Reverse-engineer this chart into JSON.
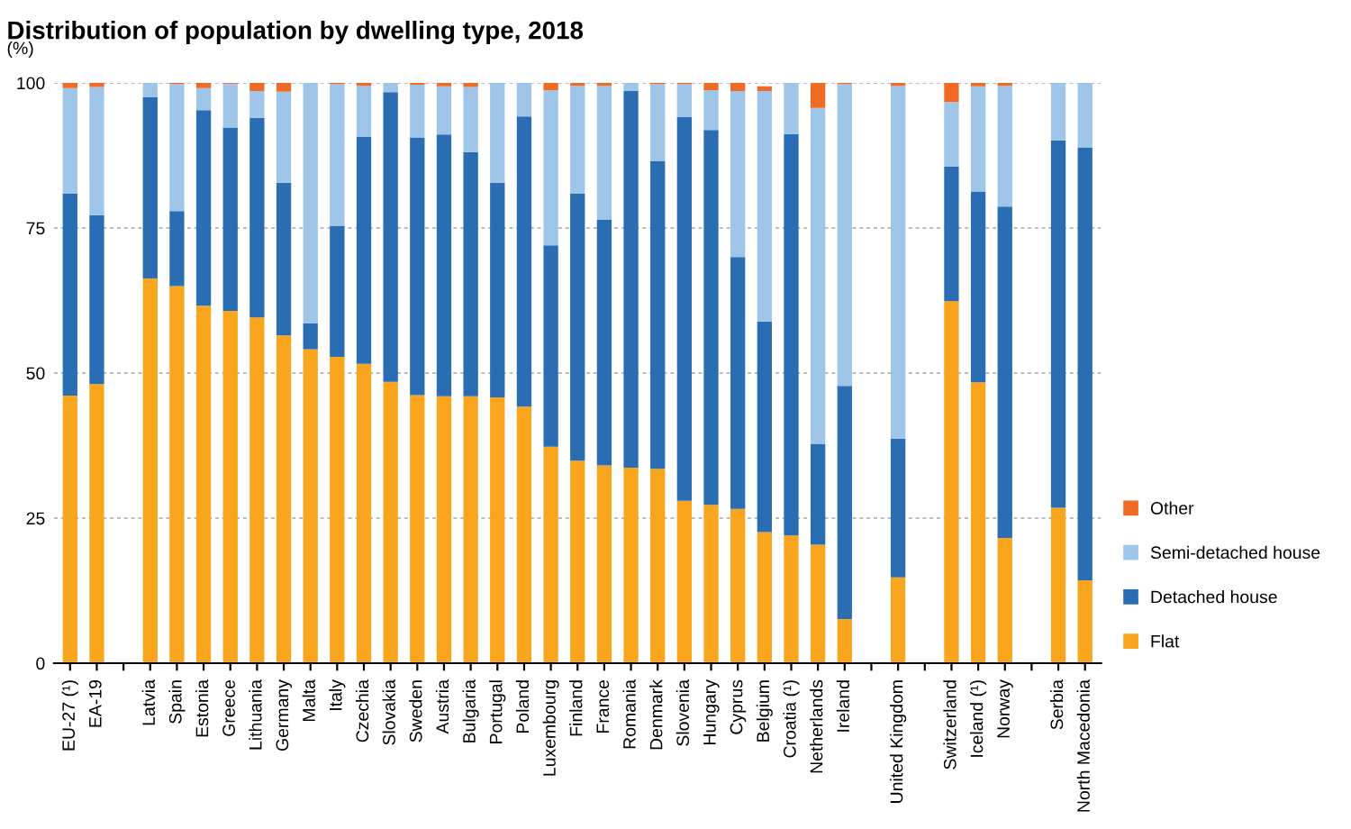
{
  "chart_data": {
    "type": "bar",
    "stacked": true,
    "title": "Distribution of population by dwelling type, 2018",
    "ylabel": "(%)",
    "categories": [
      "EU-27 (¹)",
      "EA-19",
      null,
      "Latvia",
      "Spain",
      "Estonia",
      "Greece",
      "Lithuania",
      "Germany",
      "Malta",
      "Italy",
      "Czechia",
      "Slovakia",
      "Sweden",
      "Austria",
      "Bulgaria",
      "Portugal",
      "Poland",
      "Luxembourg",
      "Finland",
      "France",
      "Romania",
      "Denmark",
      "Slovenia",
      "Hungary",
      "Cyprus",
      "Belgium",
      "Croatia (¹)",
      "Netherlands",
      "Ireland",
      null,
      "United Kingdom",
      null,
      "Switzerland",
      "Iceland (¹)",
      "Norway",
      null,
      "Serbia",
      "North Macedonia"
    ],
    "series": [
      {
        "name": "Flat",
        "color": "#f9a51e",
        "values": [
          46.1,
          48.1,
          null,
          66.3,
          65.0,
          61.6,
          60.7,
          59.6,
          56.5,
          54.1,
          52.8,
          51.6,
          48.5,
          46.2,
          46.0,
          46.0,
          45.8,
          44.2,
          37.3,
          34.9,
          34.1,
          33.7,
          33.5,
          28.0,
          27.3,
          26.6,
          22.6,
          22.0,
          20.4,
          7.6,
          null,
          14.8,
          null,
          62.4,
          48.4,
          21.6,
          null,
          26.8,
          14.3
        ]
      },
      {
        "name": "Detached house",
        "color": "#2a6db3",
        "values": [
          34.8,
          29.1,
          null,
          31.2,
          12.9,
          33.7,
          31.6,
          34.4,
          26.3,
          4.5,
          22.6,
          39.1,
          49.9,
          44.4,
          45.1,
          42.1,
          37.0,
          50.0,
          34.7,
          46.0,
          42.3,
          64.9,
          53.0,
          66.1,
          64.6,
          43.4,
          36.3,
          69.2,
          17.4,
          40.2,
          null,
          23.9,
          null,
          23.2,
          32.9,
          57.1,
          null,
          63.3,
          74.6
        ]
      },
      {
        "name": "Semi-detached house",
        "color": "#9fc5e8",
        "values": [
          18.2,
          22.1,
          null,
          2.5,
          21.9,
          3.8,
          7.6,
          4.6,
          15.7,
          41.4,
          24.4,
          8.8,
          1.6,
          9.1,
          8.3,
          11.2,
          17.2,
          5.8,
          26.7,
          18.6,
          23.1,
          1.4,
          13.3,
          5.7,
          6.8,
          28.6,
          39.7,
          8.8,
          57.9,
          52.0,
          null,
          60.8,
          null,
          11.1,
          18.1,
          20.8,
          null,
          9.9,
          11.1
        ]
      },
      {
        "name": "Other",
        "color": "#ef6a25",
        "values": [
          0.9,
          0.7,
          null,
          0.0,
          0.2,
          0.9,
          0.1,
          1.4,
          1.5,
          0.0,
          0.2,
          0.5,
          0.0,
          0.3,
          0.6,
          0.7,
          0.0,
          0.0,
          1.3,
          0.5,
          0.5,
          0.0,
          0.2,
          0.2,
          1.3,
          1.4,
          0.8,
          0.0,
          4.3,
          0.2,
          null,
          0.5,
          null,
          3.3,
          0.6,
          0.5,
          null,
          0.0,
          0.0
        ]
      }
    ],
    "ylim": [
      0,
      100
    ],
    "yticks": [
      0,
      25,
      50,
      75,
      100
    ],
    "grid": "y",
    "legend": "right"
  }
}
